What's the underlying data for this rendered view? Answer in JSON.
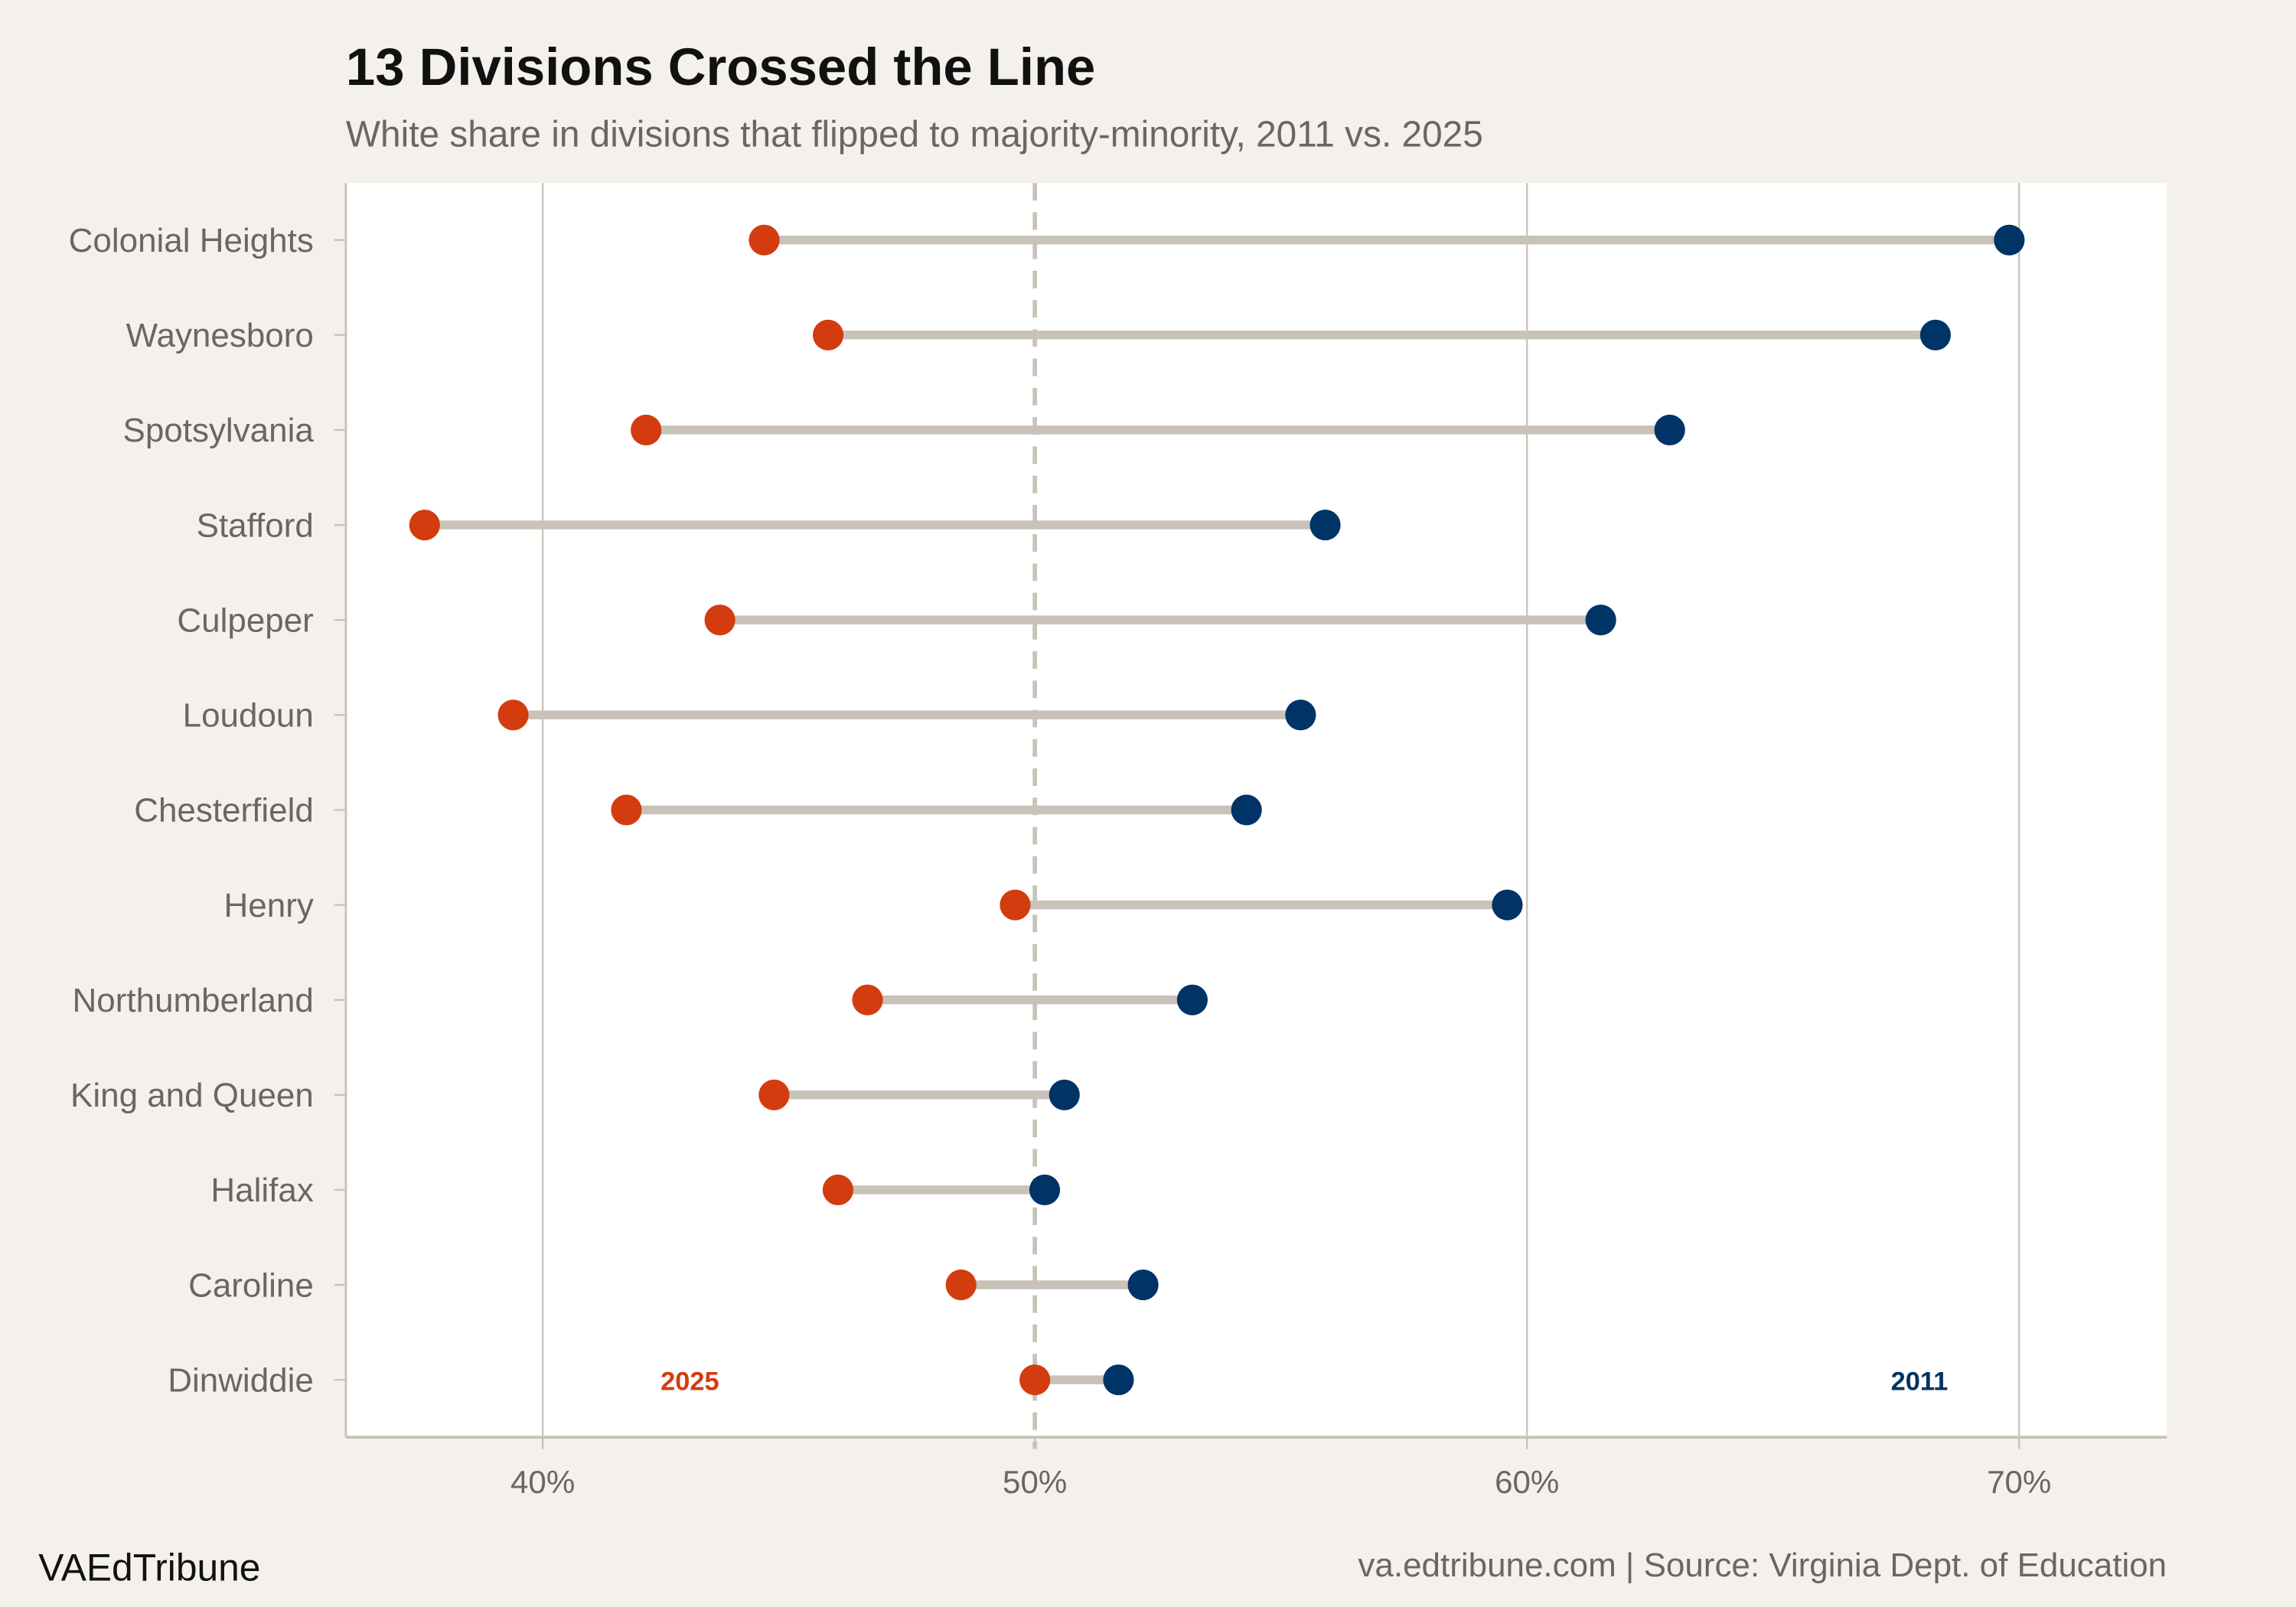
{
  "chart_data": {
    "type": "dumbbell",
    "title": "13 Divisions Crossed the Line",
    "subtitle": "White share in divisions that flipped to majority-minority, 2011 vs. 2025",
    "categories": [
      "Colonial Heights",
      "Waynesboro",
      "Spotsylvania",
      "Stafford",
      "Culpeper",
      "Loudoun",
      "Chesterfield",
      "Henry",
      "Northumberland",
      "King and Queen",
      "Halifax",
      "Caroline",
      "Dinwiddie"
    ],
    "series": [
      {
        "name": "2025",
        "color": "#d33c0e",
        "values": [
          44.5,
          45.8,
          42.1,
          37.6,
          43.6,
          39.4,
          41.7,
          49.6,
          46.6,
          44.7,
          46.0,
          48.5,
          50.0
        ]
      },
      {
        "name": "2011",
        "color": "#003366",
        "values": [
          69.8,
          68.3,
          62.9,
          55.9,
          61.5,
          55.4,
          54.3,
          59.6,
          53.2,
          50.6,
          50.2,
          52.2,
          51.7
        ]
      }
    ],
    "xlim": [
      36,
      73
    ],
    "xticks": [
      40,
      50,
      60,
      70
    ],
    "xtick_labels": [
      "40%",
      "50%",
      "60%",
      "70%"
    ],
    "reference_line": 50,
    "grid": "vertical major",
    "segment_color": "#c8c2b8",
    "background": "#f4f1ec",
    "panel": "#ffffff"
  },
  "footer": {
    "brand": "VAEdTribune",
    "source": "va.edtribune.com | Source: Virginia Dept. of Education"
  }
}
